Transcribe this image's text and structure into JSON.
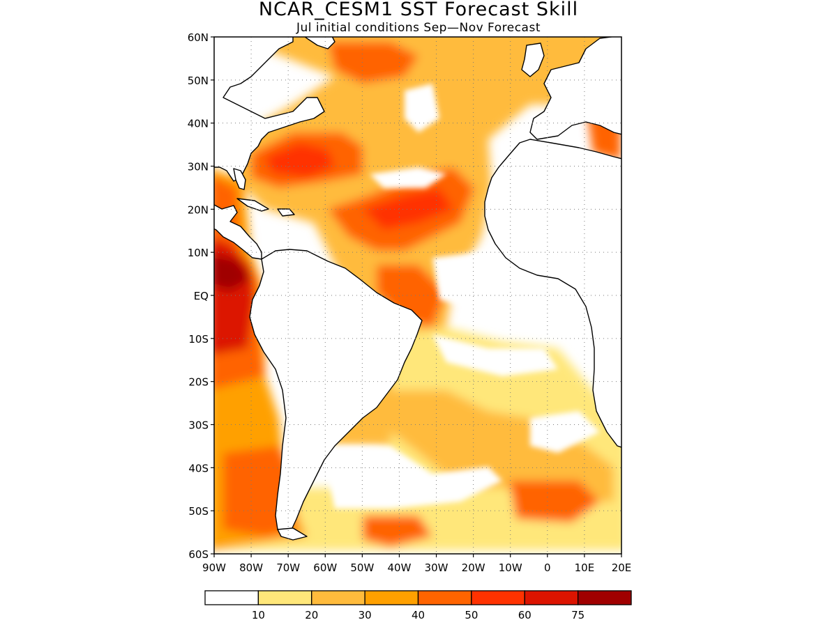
{
  "title": "NCAR_CESM1  SST Forecast Skill",
  "subtitle": "Jul initial conditions   Sep—Nov Forecast",
  "map": {
    "region": "Atlantic Ocean",
    "lon_range": [
      -90,
      20
    ],
    "lat_range": [
      -60,
      60
    ],
    "lat_ticks": [
      {
        "value": 60,
        "label": "60N"
      },
      {
        "value": 50,
        "label": "50N"
      },
      {
        "value": 40,
        "label": "40N"
      },
      {
        "value": 30,
        "label": "30N"
      },
      {
        "value": 20,
        "label": "20N"
      },
      {
        "value": 10,
        "label": "10N"
      },
      {
        "value": 0,
        "label": "EQ"
      },
      {
        "value": -10,
        "label": "10S"
      },
      {
        "value": -20,
        "label": "20S"
      },
      {
        "value": -30,
        "label": "30S"
      },
      {
        "value": -40,
        "label": "40S"
      },
      {
        "value": -50,
        "label": "50S"
      },
      {
        "value": -60,
        "label": "60S"
      }
    ],
    "lon_ticks": [
      {
        "value": -90,
        "label": "90W"
      },
      {
        "value": -80,
        "label": "80W"
      },
      {
        "value": -70,
        "label": "70W"
      },
      {
        "value": -60,
        "label": "60W"
      },
      {
        "value": -50,
        "label": "50W"
      },
      {
        "value": -40,
        "label": "40W"
      },
      {
        "value": -30,
        "label": "30W"
      },
      {
        "value": -20,
        "label": "20W"
      },
      {
        "value": -10,
        "label": "10W"
      },
      {
        "value": 0,
        "label": "0"
      },
      {
        "value": 10,
        "label": "10E"
      },
      {
        "value": 20,
        "label": "20E"
      }
    ],
    "gridlines": true,
    "gridline_style": "dotted"
  },
  "colorbar": {
    "colors": [
      "#ffffff",
      "#ffe77a",
      "#ffbb3c",
      "#ffa000",
      "#ff6400",
      "#ff3200",
      "#dc1400",
      "#a00000"
    ],
    "labels": [
      "10",
      "20",
      "30",
      "40",
      "50",
      "60",
      "75"
    ],
    "placement": "bottom"
  }
}
